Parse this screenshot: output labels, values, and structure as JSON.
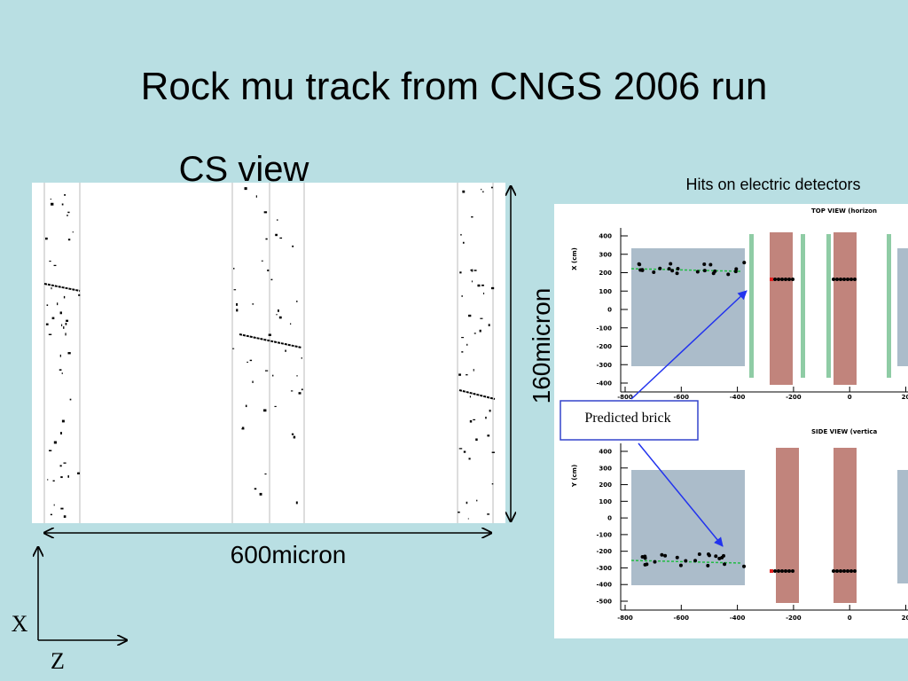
{
  "title": "Rock mu track from CNGS 2006 run",
  "cs_view": {
    "label": "CS view",
    "height_label": "160micron",
    "width_label": "600micron"
  },
  "axes": {
    "x": "X",
    "z": "Z"
  },
  "detector_plot": {
    "caption": "Hits on electric detectors",
    "callout": "Predicted brick",
    "top_view": {
      "title": "TOP VIEW (horizon",
      "ylabel": "X (cm)",
      "yticks": [
        "400",
        "300",
        "200",
        "100",
        "0",
        "-100",
        "-200",
        "-300",
        "-400"
      ],
      "xticks": [
        "-800",
        "-600",
        "-400",
        "-200",
        "0",
        "20"
      ]
    },
    "side_view": {
      "title": "SIDE VIEW (vertica",
      "ylabel": "Y (cm)",
      "yticks": [
        "400",
        "300",
        "200",
        "100",
        "0",
        "-100",
        "-200",
        "-300",
        "-400",
        "-500"
      ],
      "xticks": [
        "-800",
        "-600",
        "-400",
        "-200",
        "0",
        "20"
      ]
    }
  }
}
